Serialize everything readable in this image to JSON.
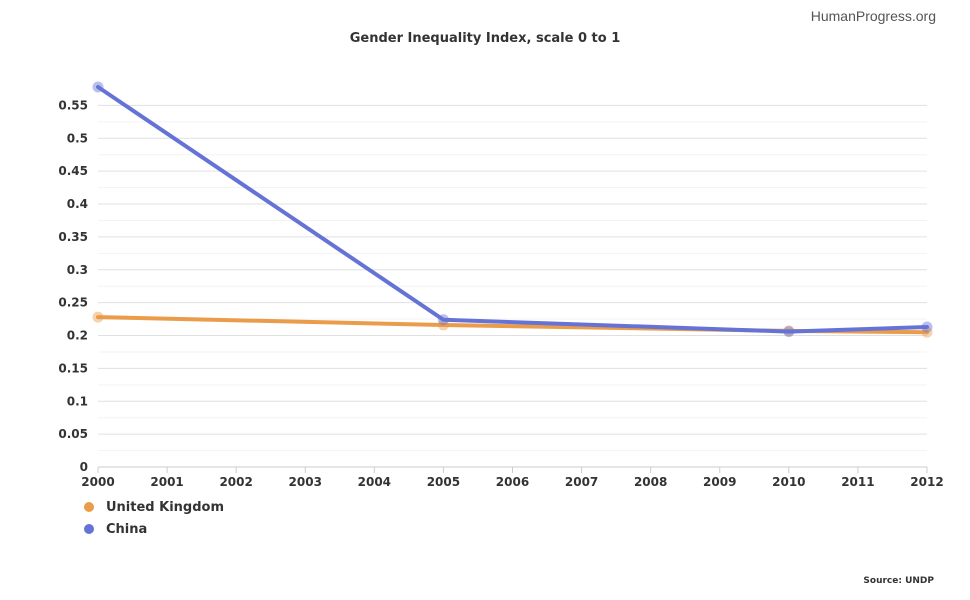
{
  "watermark": "HumanProgress.org",
  "source": "Source: UNDP",
  "chart_data": {
    "type": "line",
    "title": "Gender Inequality Index, scale 0 to 1",
    "xlabel": "",
    "ylabel": "",
    "x": [
      2000,
      2001,
      2002,
      2003,
      2004,
      2005,
      2006,
      2007,
      2008,
      2009,
      2010,
      2011,
      2012
    ],
    "x_tick_labels": [
      "2000",
      "2001",
      "2002",
      "2003",
      "2004",
      "2005",
      "2006",
      "2007",
      "2008",
      "2009",
      "2010",
      "2011",
      "2012"
    ],
    "y_tick_labels": [
      "0",
      "0.05",
      "0.1",
      "0.15",
      "0.2",
      "0.25",
      "0.3",
      "0.35",
      "0.4",
      "0.45",
      "0.5",
      "0.55"
    ],
    "ylim": [
      0,
      0.575
    ],
    "grid": true,
    "legend_position": "bottom-left",
    "series": [
      {
        "name": "United Kingdom",
        "color": "#ea9c4a",
        "points": [
          [
            2000,
            0.228
          ],
          [
            2005,
            0.216
          ],
          [
            2010,
            0.207
          ],
          [
            2012,
            0.205
          ]
        ]
      },
      {
        "name": "China",
        "color": "#6673d6",
        "points": [
          [
            2000,
            0.578
          ],
          [
            2005,
            0.224
          ],
          [
            2010,
            0.206
          ],
          [
            2012,
            0.213
          ]
        ]
      }
    ]
  }
}
